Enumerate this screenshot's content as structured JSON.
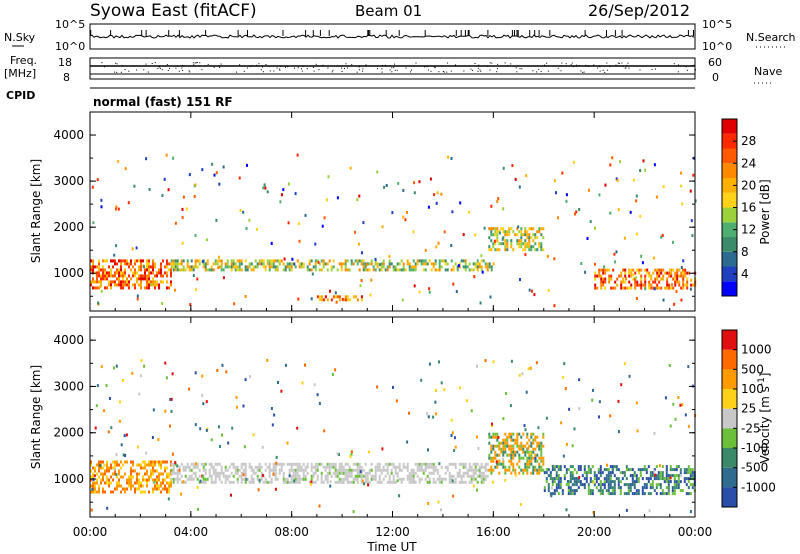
{
  "header": {
    "station": "Syowa East (fitACF)",
    "beam": "Beam 01",
    "date": "26/Sep/2012",
    "mode": "normal (fast) 151 RF"
  },
  "aux_panels": {
    "nsky_label": "N.Sky",
    "nsky_ticks": [
      "10^5",
      "10^0"
    ],
    "nsearch_label": "N.Search",
    "nsearch_ticks": [
      "10^5",
      "10^0"
    ],
    "freq_label": "Freq.",
    "freq_unit": "[MHz]",
    "freq_ticks": [
      "18",
      "8"
    ],
    "nave_label": "Nave",
    "nave_ticks": [
      "60",
      "0"
    ],
    "cpid_label": "CPID"
  },
  "chart_data": [
    {
      "type": "heatmap",
      "name": "power",
      "xlabel": "Time UT",
      "ylabel": "Slant Range [km]",
      "x_ticks": [
        "00:00",
        "04:00",
        "08:00",
        "12:00",
        "16:00",
        "20:00",
        "00:00"
      ],
      "x_range_hours": [
        0,
        24
      ],
      "y_ticks": [
        1000,
        2000,
        3000,
        4000
      ],
      "ylim": [
        180,
        4500
      ],
      "colorbar": {
        "label": "Power [dB]",
        "ticks": [
          "28",
          "24",
          "20",
          "16",
          "12",
          "8",
          "4"
        ],
        "colors": [
          "#0000ff",
          "#1f3fbf",
          "#2a6b8f",
          "#3b8a6a",
          "#4fae6f",
          "#9bd23c",
          "#ffd21a",
          "#ffb000",
          "#ff8a00",
          "#ff5a00",
          "#ff2a00",
          "#e00000"
        ]
      },
      "regions": [
        {
          "t0": 0.0,
          "t1": 3.2,
          "r0": 700,
          "r1": 1300,
          "value": "high"
        },
        {
          "t0": 3.2,
          "t1": 16.0,
          "r0": 1100,
          "r1": 1300,
          "value": "medium"
        },
        {
          "t0": 15.8,
          "t1": 18.0,
          "r0": 1500,
          "r1": 2000,
          "value": "medium"
        },
        {
          "t0": 9.0,
          "t1": 10.8,
          "r0": 400,
          "r1": 520,
          "value": "high"
        },
        {
          "t0": 20.0,
          "t1": 24.0,
          "r0": 700,
          "r1": 1100,
          "value": "high"
        }
      ]
    },
    {
      "type": "heatmap",
      "name": "velocity",
      "xlabel": "Time UT",
      "ylabel": "Slant Range [km]",
      "x_ticks": [
        "00:00",
        "04:00",
        "08:00",
        "12:00",
        "16:00",
        "20:00",
        "00:00"
      ],
      "x_range_hours": [
        0,
        24
      ],
      "y_ticks": [
        1000,
        2000,
        3000,
        4000
      ],
      "ylim": [
        180,
        4500
      ],
      "colorbar": {
        "label": "Velocity [m s",
        "label_sup": "-1",
        "label_end": "]",
        "ticks": [
          "1000",
          "500",
          "100",
          "25",
          "-25",
          "-100",
          "-500",
          "-1000"
        ],
        "colors": [
          "#2a4fa8",
          "#2f6b8f",
          "#3a8a6a",
          "#6bbf3a",
          "#c8c8c8",
          "#ffd21a",
          "#ff9a00",
          "#ff6a00",
          "#e01010"
        ]
      },
      "regions": [
        {
          "t0": 0.0,
          "t1": 3.2,
          "r0": 700,
          "r1": 1400,
          "value": "toward (orange)"
        },
        {
          "t0": 3.2,
          "t1": 15.8,
          "r0": 900,
          "r1": 1350,
          "value": "near zero (grey)"
        },
        {
          "t0": 15.8,
          "t1": 18.0,
          "r0": 1100,
          "r1": 2000,
          "value": "mixed orange/green"
        },
        {
          "t0": 18.0,
          "t1": 24.0,
          "r0": 700,
          "r1": 1300,
          "value": "mixed green/blue"
        }
      ]
    }
  ]
}
